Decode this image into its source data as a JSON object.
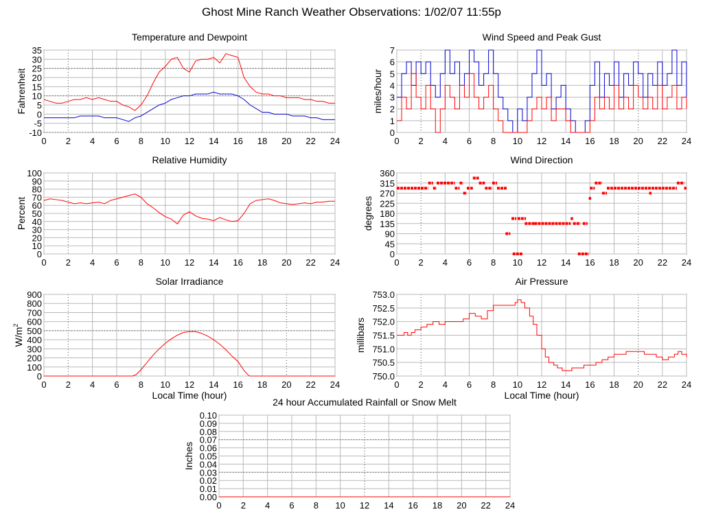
{
  "page": {
    "title": "Ghost Mine Ranch Weather Observations: 1/02/07 11:55p"
  },
  "chart_data": [
    {
      "id": "temp",
      "type": "line",
      "title": "Temperature and Dewpoint",
      "ylabel": "Fahrenheit",
      "xlabel": "",
      "xlim": [
        0,
        24
      ],
      "ylim": [
        -10,
        35
      ],
      "xticks": [
        0,
        2,
        4,
        6,
        8,
        10,
        12,
        14,
        16,
        18,
        20,
        22,
        24
      ],
      "yticks": [
        -10,
        -5,
        0,
        5,
        10,
        15,
        20,
        25,
        30,
        35
      ],
      "grid": true,
      "series": [
        {
          "color": "#ff0000",
          "x": [
            0,
            0.5,
            1,
            1.5,
            2,
            2.5,
            3,
            3.5,
            4,
            4.5,
            5,
            5.5,
            6,
            6.5,
            7,
            7.5,
            8,
            8.5,
            9,
            9.5,
            10,
            10.5,
            11,
            11.5,
            12,
            12.5,
            13,
            13.5,
            14,
            14.5,
            15,
            15.5,
            16,
            16.5,
            17,
            17.5,
            18,
            18.5,
            19,
            19.5,
            20,
            20.5,
            21,
            21.5,
            22,
            22.5,
            23,
            23.5,
            24
          ],
          "y": [
            8,
            7,
            6,
            6,
            7,
            8,
            8,
            9,
            8,
            9,
            8,
            7,
            7,
            5,
            4,
            2,
            5,
            10,
            17,
            23,
            26,
            30,
            31,
            25,
            23,
            29,
            30,
            30,
            31,
            28,
            33,
            32,
            31,
            20,
            15,
            12,
            11,
            11,
            10,
            10,
            9,
            9,
            9,
            8,
            8,
            7,
            7,
            6,
            6
          ]
        },
        {
          "color": "#0000cc",
          "x": [
            0,
            0.5,
            1,
            1.5,
            2,
            2.5,
            3,
            3.5,
            4,
            4.5,
            5,
            5.5,
            6,
            6.5,
            7,
            7.5,
            8,
            8.5,
            9,
            9.5,
            10,
            10.5,
            11,
            11.5,
            12,
            12.5,
            13,
            13.5,
            14,
            14.5,
            15,
            15.5,
            16,
            16.5,
            17,
            17.5,
            18,
            18.5,
            19,
            19.5,
            20,
            20.5,
            21,
            21.5,
            22,
            22.5,
            23,
            23.5,
            24
          ],
          "y": [
            -2,
            -2,
            -2,
            -2,
            -2,
            -2,
            -1,
            -1,
            -1,
            -1,
            -2,
            -2,
            -2,
            -3,
            -4,
            -2,
            -1,
            1,
            3,
            5,
            6,
            8,
            9,
            10,
            10,
            11,
            11,
            11,
            12,
            11,
            11,
            11,
            10,
            8,
            5,
            3,
            1,
            1,
            0,
            0,
            0,
            -1,
            -1,
            -1,
            -2,
            -2,
            -3,
            -3,
            -3
          ]
        }
      ]
    },
    {
      "id": "wind",
      "type": "line",
      "title": "Wind Speed and Peak Gust",
      "ylabel": "miles/hour",
      "xlabel": "",
      "xlim": [
        0,
        24
      ],
      "ylim": [
        0,
        7
      ],
      "xticks": [
        0,
        2,
        4,
        6,
        8,
        10,
        12,
        14,
        16,
        18,
        20,
        22,
        24
      ],
      "yticks": [
        0,
        1,
        2,
        3,
        4,
        5,
        6,
        7
      ],
      "grid": true,
      "step": true,
      "series": [
        {
          "color": "#0000cc",
          "x": [
            0,
            0.4,
            0.8,
            1.2,
            1.6,
            2,
            2.4,
            2.8,
            3.2,
            3.6,
            4,
            4.4,
            4.8,
            5.2,
            5.6,
            6,
            6.4,
            6.8,
            7.2,
            7.6,
            8,
            8.4,
            8.8,
            9.2,
            9.6,
            10,
            10.4,
            10.8,
            11.2,
            11.6,
            12,
            12.4,
            12.8,
            13.2,
            13.6,
            14,
            14.4,
            14.8,
            15.2,
            15.6,
            16,
            16.4,
            16.8,
            17.2,
            17.6,
            18,
            18.4,
            18.8,
            19.2,
            19.6,
            20,
            20.4,
            20.8,
            21.2,
            21.6,
            22,
            22.4,
            22.8,
            23.2,
            23.6,
            24
          ],
          "y": [
            3,
            5,
            6,
            4,
            6,
            5,
            6,
            4,
            3,
            5,
            7,
            5,
            6,
            4,
            5,
            7,
            6,
            4,
            5,
            7,
            5,
            3,
            2,
            1,
            0,
            2,
            1,
            3,
            5,
            7,
            4,
            5,
            2,
            3,
            4,
            2,
            1,
            0,
            0,
            1,
            4,
            6,
            3,
            5,
            4,
            6,
            3,
            5,
            4,
            6,
            5,
            3,
            5,
            4,
            6,
            4,
            5,
            7,
            4,
            6,
            3
          ]
        },
        {
          "color": "#ff0000",
          "x": [
            0,
            0.4,
            0.8,
            1.2,
            1.6,
            2,
            2.4,
            2.8,
            3.2,
            3.6,
            4,
            4.4,
            4.8,
            5.2,
            5.6,
            6,
            6.4,
            6.8,
            7.2,
            7.6,
            8,
            8.4,
            8.8,
            9.2,
            9.6,
            10,
            10.4,
            10.8,
            11.2,
            11.6,
            12,
            12.4,
            12.8,
            13.2,
            13.6,
            14,
            14.4,
            14.8,
            15.2,
            15.6,
            16,
            16.4,
            16.8,
            17.2,
            17.6,
            18,
            18.4,
            18.8,
            19.2,
            19.6,
            20,
            20.4,
            20.8,
            21.2,
            21.6,
            22,
            22.4,
            22.8,
            23.2,
            23.6,
            24
          ],
          "y": [
            1,
            3,
            2,
            5,
            3,
            2,
            4,
            2,
            0,
            2,
            4,
            3,
            2,
            4,
            3,
            5,
            3,
            2,
            3,
            4,
            2,
            1,
            0,
            0,
            0,
            0,
            0,
            1,
            2,
            3,
            2,
            3,
            1,
            2,
            2,
            1,
            0,
            0,
            0,
            0,
            1,
            3,
            2,
            3,
            2,
            4,
            2,
            3,
            2,
            4,
            3,
            2,
            3,
            2,
            4,
            2,
            3,
            4,
            2,
            3,
            2
          ]
        }
      ]
    },
    {
      "id": "humidity",
      "type": "line",
      "title": "Relative Humidity",
      "ylabel": "Percent",
      "xlabel": "",
      "xlim": [
        0,
        24
      ],
      "ylim": [
        0,
        100
      ],
      "xticks": [
        0,
        2,
        4,
        6,
        8,
        10,
        12,
        14,
        16,
        18,
        20,
        22,
        24
      ],
      "yticks": [
        0,
        10,
        20,
        30,
        40,
        50,
        60,
        70,
        80,
        90,
        100
      ],
      "grid": true,
      "series": [
        {
          "color": "#ff0000",
          "x": [
            0,
            0.5,
            1,
            1.5,
            2,
            2.5,
            3,
            3.5,
            4,
            4.5,
            5,
            5.5,
            6,
            6.5,
            7,
            7.5,
            8,
            8.5,
            9,
            9.5,
            10,
            10.5,
            11,
            11.5,
            12,
            12.5,
            13,
            13.5,
            14,
            14.5,
            15,
            15.5,
            16,
            16.5,
            17,
            17.5,
            18,
            18.5,
            19,
            19.5,
            20,
            20.5,
            21,
            21.5,
            22,
            22.5,
            23,
            23.5,
            24
          ],
          "y": [
            66,
            68,
            67,
            66,
            64,
            62,
            63,
            62,
            63,
            64,
            62,
            66,
            68,
            70,
            72,
            74,
            70,
            62,
            57,
            51,
            46,
            43,
            37,
            48,
            52,
            47,
            44,
            43,
            41,
            45,
            42,
            40,
            41,
            50,
            62,
            66,
            67,
            68,
            66,
            63,
            62,
            61,
            62,
            63,
            62,
            64,
            64,
            65,
            65
          ]
        }
      ]
    },
    {
      "id": "direction",
      "type": "scatter",
      "title": "Wind Direction",
      "ylabel": "degrees",
      "xlabel": "",
      "xlim": [
        0,
        24
      ],
      "ylim": [
        0,
        360
      ],
      "xticks": [
        0,
        2,
        4,
        6,
        8,
        10,
        12,
        14,
        16,
        18,
        20,
        22,
        24
      ],
      "yticks": [
        0,
        45,
        90,
        135,
        180,
        225,
        270,
        315,
        360
      ],
      "grid": true,
      "series": [
        {
          "color": "#ff0000",
          "segments": [
            [
              0,
              2.6,
              292
            ],
            [
              2.6,
              3.0,
              315
            ],
            [
              3.0,
              3.3,
              292
            ],
            [
              3.3,
              4.8,
              315
            ],
            [
              4.8,
              5.2,
              292
            ],
            [
              5.2,
              5.5,
              315
            ],
            [
              5.5,
              5.8,
              270
            ],
            [
              5.8,
              6.3,
              292
            ],
            [
              6.3,
              6.8,
              337
            ],
            [
              6.8,
              7.3,
              315
            ],
            [
              7.3,
              7.9,
              292
            ],
            [
              7.9,
              8.3,
              315
            ],
            [
              8.3,
              9.1,
              292
            ],
            [
              9.0,
              9.4,
              90
            ],
            [
              9.5,
              9.9,
              157
            ],
            [
              9.6,
              10.4,
              0
            ],
            [
              10.0,
              10.7,
              157
            ],
            [
              10.6,
              11.4,
              135
            ],
            [
              11.4,
              14.4,
              135
            ],
            [
              14.4,
              14.6,
              157
            ],
            [
              14.6,
              15.2,
              135
            ],
            [
              15.0,
              15.9,
              0
            ],
            [
              15.4,
              15.8,
              135
            ],
            [
              15.9,
              16.1,
              247
            ],
            [
              16.0,
              16.4,
              292
            ],
            [
              16.4,
              17.0,
              315
            ],
            [
              17.0,
              17.4,
              270
            ],
            [
              17.4,
              23.2,
              292
            ],
            [
              20.9,
              21.1,
              270
            ],
            [
              23.2,
              23.8,
              315
            ],
            [
              23.8,
              24.0,
              292
            ]
          ]
        }
      ]
    },
    {
      "id": "solar",
      "type": "area",
      "title": "Solar Irradiance",
      "ylabel": "W/m",
      "ylabel_sup": "2",
      "xlabel": "Local Time (hour)",
      "xlim": [
        0,
        24
      ],
      "ylim": [
        0,
        900
      ],
      "xticks": [
        0,
        2,
        4,
        6,
        8,
        10,
        12,
        14,
        16,
        18,
        20,
        22,
        24
      ],
      "yticks": [
        0,
        100,
        200,
        300,
        400,
        500,
        600,
        700,
        800,
        900
      ],
      "grid": true,
      "series": [
        {
          "color": "#ff0000",
          "x": [
            0,
            7.3,
            7.6,
            8,
            8.5,
            9,
            9.5,
            10,
            10.5,
            11,
            11.5,
            12,
            12.5,
            13,
            13.5,
            14,
            14.5,
            15,
            15.5,
            16,
            16.5,
            16.8,
            17,
            24
          ],
          "y": [
            0,
            0,
            15,
            70,
            150,
            230,
            300,
            360,
            410,
            450,
            480,
            490,
            490,
            470,
            440,
            400,
            350,
            290,
            220,
            160,
            60,
            15,
            0,
            0
          ]
        }
      ]
    },
    {
      "id": "pressure",
      "type": "line",
      "title": "Air Pressure",
      "ylabel": "millibars",
      "xlabel": "Local Time (hour)",
      "xlim": [
        0,
        24
      ],
      "ylim": [
        750.0,
        753.0
      ],
      "xticks": [
        0,
        2,
        4,
        6,
        8,
        10,
        12,
        14,
        16,
        18,
        20,
        22,
        24
      ],
      "yticks": [
        "750.0",
        "750.5",
        "751.0",
        "751.5",
        "752.0",
        "752.5",
        "753.0"
      ],
      "grid": true,
      "step": true,
      "series": [
        {
          "color": "#ff0000",
          "x": [
            0,
            0.6,
            0.9,
            1.2,
            1.5,
            2,
            2.5,
            3,
            3.5,
            4,
            4.5,
            5,
            5.5,
            6,
            6.5,
            7,
            7.5,
            8,
            8.5,
            9,
            9.5,
            9.8,
            10,
            10.3,
            10.6,
            11,
            11.3,
            11.6,
            12,
            12.3,
            12.6,
            13,
            13.3,
            13.7,
            14,
            14.5,
            15,
            15.5,
            16,
            16.5,
            17,
            17.5,
            18,
            18.5,
            19,
            19.5,
            20,
            20.5,
            21,
            21.5,
            22,
            22.5,
            23,
            23.3,
            23.6,
            24
          ],
          "y": [
            751.5,
            751.6,
            751.5,
            751.6,
            751.7,
            751.8,
            751.9,
            752.0,
            751.9,
            752.0,
            752.0,
            752.0,
            752.1,
            752.3,
            752.2,
            752.1,
            752.4,
            752.6,
            752.6,
            752.6,
            752.6,
            752.7,
            752.8,
            752.7,
            752.5,
            752.2,
            751.9,
            751.5,
            751.0,
            750.7,
            750.5,
            750.4,
            750.3,
            750.2,
            750.2,
            750.3,
            750.3,
            750.4,
            750.4,
            750.5,
            750.6,
            750.7,
            750.8,
            750.8,
            750.9,
            750.9,
            750.9,
            750.8,
            750.8,
            750.7,
            750.6,
            750.7,
            750.8,
            750.9,
            750.8,
            750.7
          ]
        }
      ]
    },
    {
      "id": "rain",
      "type": "line",
      "title": "24 hour Accumulated Rainfall or Snow Melt",
      "ylabel": "Inches",
      "xlabel": "",
      "xlim": [
        0,
        24
      ],
      "ylim": [
        0,
        0.1
      ],
      "xticks": [
        0,
        2,
        4,
        6,
        8,
        10,
        12,
        14,
        16,
        18,
        20,
        22,
        24
      ],
      "yticks": [
        "0.00",
        "0.01",
        "0.02",
        "0.03",
        "0.04",
        "0.05",
        "0.06",
        "0.07",
        "0.08",
        "0.09",
        "0.10"
      ],
      "grid": true,
      "series": [
        {
          "color": "#ff0000",
          "x": [
            0,
            24
          ],
          "y": [
            0,
            0
          ]
        }
      ]
    }
  ]
}
